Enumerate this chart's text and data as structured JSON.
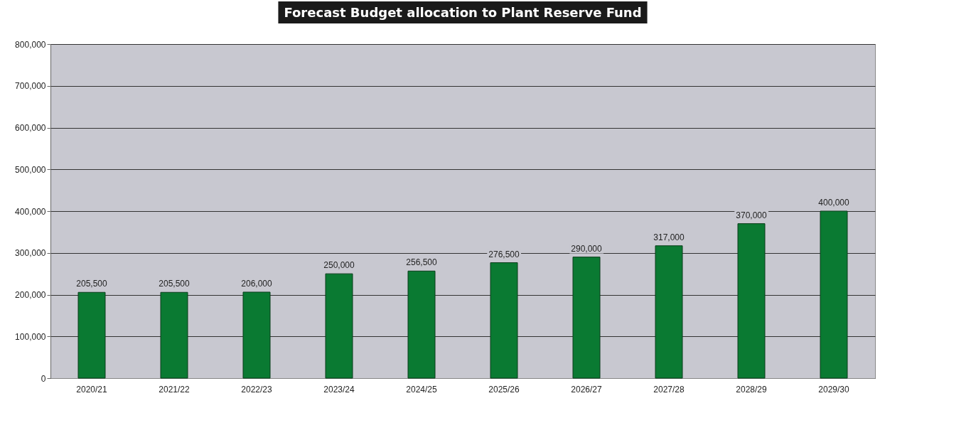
{
  "chart_data": {
    "type": "bar",
    "title": "Forecast Budget allocation to Plant Reserve Fund",
    "categories": [
      "2020/21",
      "2021/22",
      "2022/23",
      "2023/24",
      "2024/25",
      "2025/26",
      "2026/27",
      "2027/28",
      "2028/29",
      "2029/30"
    ],
    "values": [
      205500,
      205500,
      206000,
      250000,
      256500,
      276500,
      290000,
      317000,
      370000,
      400000
    ],
    "color": "#0a7a32",
    "ylim": [
      0,
      800000
    ],
    "yticks": [
      0,
      {
        "value": 100000,
        "label": "100,000"
      },
      {
        "value": 200000,
        "label": "200,000"
      },
      {
        "value": 300000,
        "label": "300,000"
      },
      {
        "value": 400000,
        "label": "400,000"
      },
      {
        "value": 500000,
        "label": "500,000"
      },
      {
        "value": 600000,
        "label": "600,000"
      },
      {
        "value": 700000,
        "label": "700,000"
      },
      {
        "value": 800000,
        "label": "800,000"
      }
    ],
    "value_labels": [
      "205,500",
      "205,500",
      "206,000",
      "250,000",
      "256,500",
      "276,500",
      "290,000",
      "317,000",
      "370,000",
      "400,000"
    ],
    "grid": "y"
  }
}
